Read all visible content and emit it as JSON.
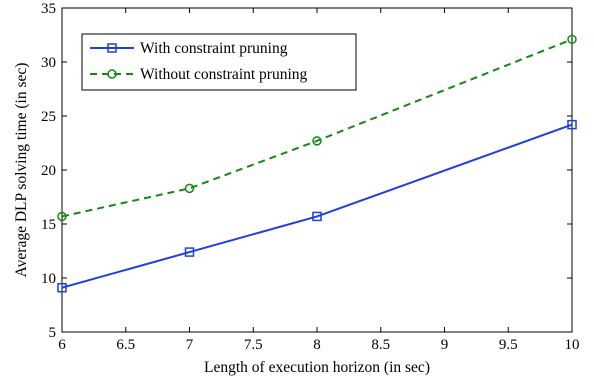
{
  "chart_data": {
    "type": "line",
    "title": "",
    "xlabel": "Length of execution horizon (in sec)",
    "ylabel": "Average DLP solving time (in sec)",
    "xlim": [
      6,
      10
    ],
    "ylim": [
      5,
      35
    ],
    "xticks": [
      6,
      6.5,
      7,
      7.5,
      8,
      8.5,
      9,
      9.5,
      10
    ],
    "xtick_labels": [
      "6",
      "6.5",
      "7",
      "7.5",
      "8",
      "8.5",
      "9",
      "9.5",
      "10"
    ],
    "yticks": [
      5,
      10,
      15,
      20,
      25,
      30,
      35
    ],
    "ytick_labels": [
      "5",
      "10",
      "15",
      "20",
      "25",
      "30",
      "35"
    ],
    "grid": false,
    "legend_position": "top-left",
    "series": [
      {
        "name": "With constraint pruning",
        "color": "#1f3fe0",
        "line_style": "solid",
        "marker": "square",
        "x": [
          6,
          7,
          8,
          10
        ],
        "y": [
          9.1,
          12.4,
          15.7,
          24.2
        ]
      },
      {
        "name": "Without constraint pruning",
        "color": "#138a13",
        "line_style": "dashed",
        "marker": "circle",
        "x": [
          6,
          7,
          8,
          10
        ],
        "y": [
          15.7,
          18.3,
          22.7,
          32.1
        ]
      }
    ]
  }
}
